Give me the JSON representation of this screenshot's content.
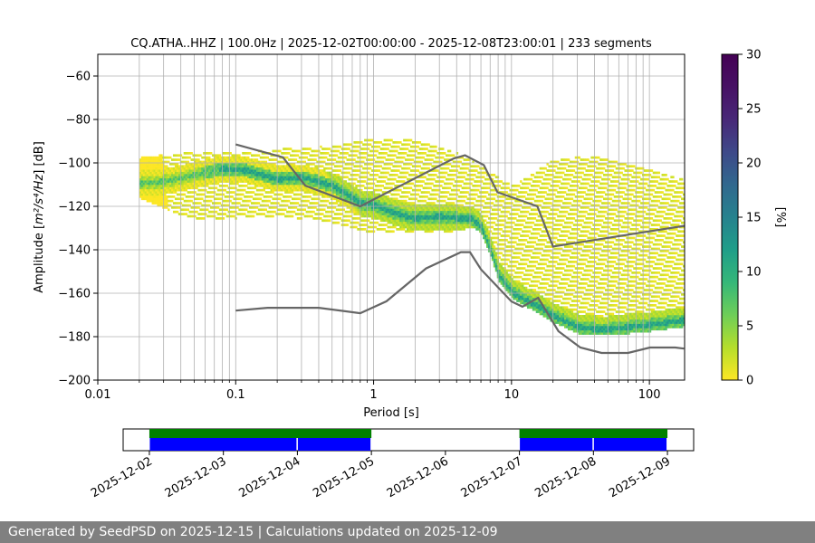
{
  "footer": {
    "generated_text": "Generated by SeedPSD on 2025-12-15 | Calculations updated on 2025-12-09"
  },
  "chart_data": [
    {
      "type": "heatmap",
      "title": "CQ.ATHA..HHZ | 100.0Hz | 2025-12-02T00:00:00 - 2025-12-08T23:00:01 | 233 segments",
      "xlabel": "Period [s]",
      "ylabel_main": "Amplitude [",
      "ylabel_unit": "m²/s⁴/Hz",
      "ylabel_tail": "] [dB]",
      "x_scale": "log",
      "xlim": [
        0.01,
        180
      ],
      "ylim": [
        -200,
        -50
      ],
      "x_ticks": [
        0.01,
        0.1,
        1,
        10,
        100
      ],
      "x_tick_labels": [
        "0.01",
        "0.1",
        "1",
        "10",
        "100"
      ],
      "y_ticks": [
        -200,
        -180,
        -160,
        -140,
        -120,
        -100,
        -80,
        -60
      ],
      "y_tick_labels": [
        "−200",
        "−180",
        "−160",
        "−140",
        "−120",
        "−100",
        "−80",
        "−60"
      ],
      "grid": true,
      "colorbar": {
        "label": "[%]",
        "range": [
          0,
          30
        ],
        "ticks": [
          0,
          5,
          10,
          15,
          20,
          25,
          30
        ],
        "tick_labels": [
          "0",
          "5",
          "10",
          "15",
          "20",
          "25",
          "30"
        ],
        "colormap": "viridis_r"
      },
      "mode_curve": {
        "period": [
          0.02,
          0.03,
          0.05,
          0.08,
          0.12,
          0.2,
          0.3,
          0.5,
          0.8,
          1.0,
          1.5,
          2.0,
          3.0,
          4.0,
          5.0,
          6.0,
          7.0,
          8.0,
          10,
          12,
          15,
          20,
          30,
          40,
          50,
          70,
          100,
          130,
          170
        ],
        "db": [
          -110,
          -109,
          -106,
          -103,
          -104,
          -108,
          -107,
          -111,
          -119,
          -120,
          -124,
          -126,
          -125,
          -126,
          -126,
          -130,
          -141,
          -152,
          -160,
          -163,
          -166,
          -171,
          -176,
          -177,
          -177,
          -176,
          -175,
          -174,
          -173
        ]
      },
      "upper_spread_curve": {
        "period": [
          0.02,
          0.05,
          0.1,
          0.2,
          0.4,
          0.8,
          1.0,
          2.0,
          4.0,
          5.0,
          7.0,
          10,
          20,
          40,
          80,
          170
        ],
        "db": [
          -99,
          -96,
          -97,
          -95,
          -94,
          -91,
          -90,
          -91,
          -97,
          -100,
          -106,
          -112,
          -100,
          -98,
          -103,
          -109
        ]
      },
      "lower_spread_curve": {
        "period": [
          0.02,
          0.05,
          0.1,
          0.2,
          0.5,
          1.0,
          2.0,
          4.0,
          5.0,
          7.0,
          10,
          20,
          40,
          80,
          170
        ],
        "db": [
          -116,
          -126,
          -125,
          -124,
          -127,
          -132,
          -132,
          -131,
          -129,
          -132,
          -138,
          -150,
          -155,
          -165,
          -170
        ]
      },
      "nlnm_nhnm": {
        "color": "#666666",
        "nhnm": {
          "period": [
            0.1,
            0.22,
            0.32,
            0.8,
            3.8,
            4.6,
            6.3,
            7.9,
            15.4,
            20,
            354.8
          ],
          "db": [
            -91.5,
            -97.4,
            -110.5,
            -120,
            -98,
            -96.5,
            -101,
            -113.5,
            -120,
            -138.5,
            -126
          ]
        },
        "nlnm": {
          "period": [
            0.1,
            0.17,
            0.4,
            0.8,
            1.24,
            2.4,
            4.3,
            5.0,
            6.0,
            10,
            12,
            15.6,
            21.9,
            31.6,
            45,
            70,
            101,
            154,
            178
          ],
          "db": [
            -168,
            -166.7,
            -166.7,
            -169.2,
            -163.7,
            -148.6,
            -141.1,
            -141.1,
            -149,
            -163.8,
            -166.2,
            -162.1,
            -177.5,
            -185,
            -187.5,
            -187.5,
            -185,
            -185,
            -185.5
          ]
        }
      }
    },
    {
      "type": "timeline",
      "x_tick_labels": [
        "2025-12-02",
        "2025-12-03",
        "2025-12-04",
        "2025-12-05",
        "2025-12-06",
        "2025-12-07",
        "2025-12-08",
        "2025-12-09"
      ],
      "xlim": [
        "2025-12-01T15:30",
        "2025-12-09T08:30"
      ],
      "available_data": [
        [
          "2025-12-02T00:00",
          "2025-12-05T00:00"
        ],
        [
          "2025-12-07T00:00",
          "2025-12-09T00:00"
        ]
      ],
      "psd_segments": [
        [
          "2025-12-02T00:00",
          "2025-12-04T00:00"
        ],
        [
          "2025-12-04T00:00",
          "2025-12-05T00:00"
        ],
        [
          "2025-12-07T00:00",
          "2025-12-08T00:00"
        ],
        [
          "2025-12-08T00:00",
          "2025-12-09T00:00"
        ]
      ],
      "colors": {
        "available": "#008000",
        "psd": "#0000ff"
      }
    }
  ]
}
